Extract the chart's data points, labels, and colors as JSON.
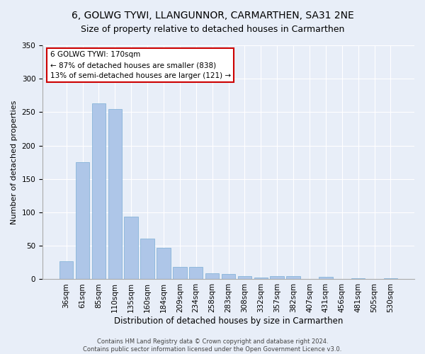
{
  "title": "6, GOLWG TYWI, LLANGUNNOR, CARMARTHEN, SA31 2NE",
  "subtitle": "Size of property relative to detached houses in Carmarthen",
  "xlabel": "Distribution of detached houses by size in Carmarthen",
  "ylabel": "Number of detached properties",
  "categories": [
    "36sqm",
    "61sqm",
    "85sqm",
    "110sqm",
    "135sqm",
    "160sqm",
    "184sqm",
    "209sqm",
    "234sqm",
    "258sqm",
    "283sqm",
    "308sqm",
    "332sqm",
    "357sqm",
    "382sqm",
    "407sqm",
    "431sqm",
    "456sqm",
    "481sqm",
    "505sqm",
    "530sqm"
  ],
  "values": [
    27,
    175,
    263,
    255,
    94,
    61,
    47,
    19,
    19,
    9,
    8,
    5,
    3,
    5,
    5,
    0,
    4,
    0,
    2,
    0,
    2
  ],
  "bar_color": "#aec6e8",
  "bar_edge_color": "#7aadd4",
  "annotation_box_text": "6 GOLWG TYWI: 170sqm\n← 87% of detached houses are smaller (838)\n13% of semi-detached houses are larger (121) →",
  "annotation_box_color": "#ffffff",
  "annotation_box_edge_color": "#cc0000",
  "ylim": [
    0,
    350
  ],
  "yticks": [
    0,
    50,
    100,
    150,
    200,
    250,
    300,
    350
  ],
  "title_fontsize": 10,
  "subtitle_fontsize": 9,
  "ylabel_fontsize": 8,
  "xlabel_fontsize": 8.5,
  "tick_fontsize": 7.5,
  "annot_fontsize": 7.5,
  "footer_text": "Contains HM Land Registry data © Crown copyright and database right 2024.\nContains public sector information licensed under the Open Government Licence v3.0.",
  "footer_fontsize": 6,
  "bg_color": "#e8eef8",
  "plot_bg_color": "#e8eef8"
}
